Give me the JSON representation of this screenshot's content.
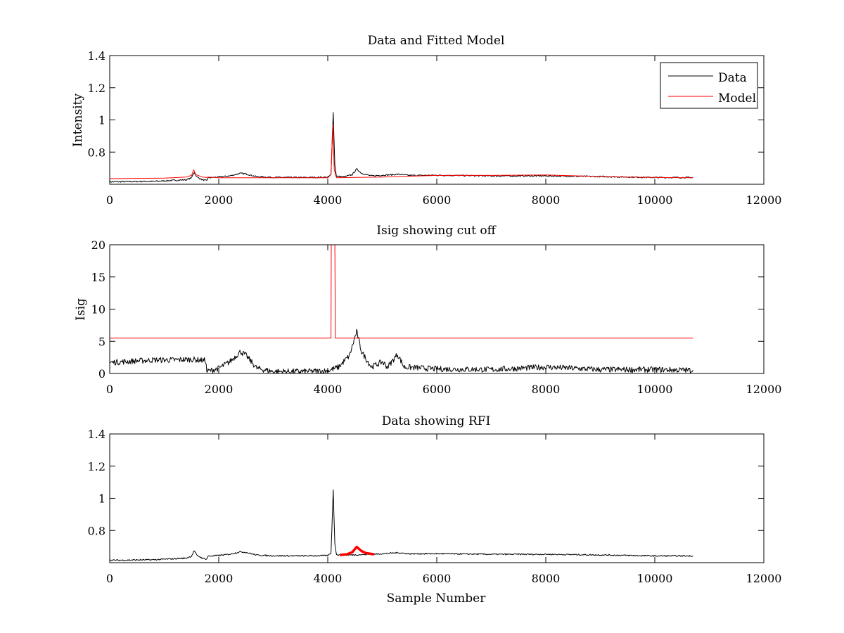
{
  "colors": {
    "data": "#000000",
    "model": "#ff0000",
    "rfi": "#ff0000",
    "axes": "#000000",
    "background": "#ffffff"
  },
  "chart_data": [
    {
      "type": "line",
      "title": "Data and Fitted Model",
      "xlabel": "",
      "ylabel": "Intensity",
      "xlim": [
        0,
        12000
      ],
      "ylim": [
        0.6,
        1.4
      ],
      "x_ticks": [
        0,
        2000,
        4000,
        6000,
        8000,
        10000,
        12000
      ],
      "y_ticks": [
        0.8,
        1,
        1.2,
        1.4
      ],
      "x_tick_labels": [
        "0",
        "2000",
        "4000",
        "6000",
        "8000",
        "10000",
        "12000"
      ],
      "y_tick_labels": [
        "0.8",
        "1",
        "1.2",
        "1.4"
      ],
      "grid": false,
      "legend": {
        "placement": "top-right",
        "entries": [
          "Data",
          "Model"
        ]
      },
      "series": [
        {
          "name": "Data",
          "color": "#000000",
          "points": [
            [
              0,
              0.615
            ],
            [
              800,
              0.618
            ],
            [
              1400,
              0.628
            ],
            [
              1500,
              0.64
            ],
            [
              1550,
              0.675
            ],
            [
              1600,
              0.645
            ],
            [
              1700,
              0.628
            ],
            [
              1780,
              0.622
            ],
            [
              1800,
              0.64
            ],
            [
              2000,
              0.645
            ],
            [
              2200,
              0.652
            ],
            [
              2400,
              0.668
            ],
            [
              2500,
              0.664
            ],
            [
              2700,
              0.647
            ],
            [
              3000,
              0.643
            ],
            [
              3500,
              0.642
            ],
            [
              4000,
              0.644
            ],
            [
              4060,
              0.66
            ],
            [
              4100,
              1.05
            ],
            [
              4130,
              0.72
            ],
            [
              4160,
              0.65
            ],
            [
              4300,
              0.646
            ],
            [
              4450,
              0.66
            ],
            [
              4530,
              0.695
            ],
            [
              4620,
              0.668
            ],
            [
              4800,
              0.652
            ],
            [
              5000,
              0.656
            ],
            [
              5300,
              0.662
            ],
            [
              5500,
              0.655
            ],
            [
              6000,
              0.656
            ],
            [
              7000,
              0.652
            ],
            [
              8000,
              0.652
            ],
            [
              9000,
              0.648
            ],
            [
              10000,
              0.642
            ],
            [
              10700,
              0.642
            ]
          ]
        },
        {
          "name": "Model",
          "color": "#ff0000",
          "points": [
            [
              0,
              0.635
            ],
            [
              1000,
              0.638
            ],
            [
              1400,
              0.645
            ],
            [
              1500,
              0.655
            ],
            [
              1540,
              0.69
            ],
            [
              1580,
              0.66
            ],
            [
              1700,
              0.645
            ],
            [
              1780,
              0.642
            ],
            [
              1800,
              0.645
            ],
            [
              2000,
              0.64
            ],
            [
              3000,
              0.64
            ],
            [
              4000,
              0.64
            ],
            [
              4060,
              0.66
            ],
            [
              4090,
              0.97
            ],
            [
              4120,
              0.69
            ],
            [
              4160,
              0.64
            ],
            [
              5000,
              0.645
            ],
            [
              6000,
              0.655
            ],
            [
              7000,
              0.655
            ],
            [
              8000,
              0.658
            ],
            [
              9000,
              0.648
            ],
            [
              10000,
              0.642
            ],
            [
              10700,
              0.64
            ]
          ]
        }
      ]
    },
    {
      "type": "line",
      "title": "Isig showing cut off",
      "xlabel": "",
      "ylabel": "Isig",
      "xlim": [
        0,
        12000
      ],
      "ylim": [
        0,
        20
      ],
      "x_ticks": [
        0,
        2000,
        4000,
        6000,
        8000,
        10000,
        12000
      ],
      "y_ticks": [
        0,
        5,
        10,
        15,
        20
      ],
      "x_tick_labels": [
        "0",
        "2000",
        "4000",
        "6000",
        "8000",
        "10000",
        "12000"
      ],
      "y_tick_labels": [
        "0",
        "5",
        "10",
        "15",
        "20"
      ],
      "grid": false,
      "series": [
        {
          "name": "",
          "color": "#000000",
          "points": [
            [
              0,
              1.7
            ],
            [
              400,
              1.9
            ],
            [
              800,
              2.1
            ],
            [
              1200,
              2.1
            ],
            [
              1500,
              2.2
            ],
            [
              1760,
              2.0
            ],
            [
              1780,
              0.3
            ],
            [
              2000,
              0.8
            ],
            [
              2200,
              1.8
            ],
            [
              2400,
              3.4
            ],
            [
              2500,
              2.8
            ],
            [
              2700,
              0.8
            ],
            [
              3000,
              0.3
            ],
            [
              3500,
              0.3
            ],
            [
              4000,
              0.4
            ],
            [
              4200,
              1.0
            ],
            [
              4400,
              2.8
            ],
            [
              4530,
              6.5
            ],
            [
              4620,
              3.4
            ],
            [
              4800,
              1.0
            ],
            [
              5000,
              1.8
            ],
            [
              5100,
              1.0
            ],
            [
              5280,
              3.0
            ],
            [
              5400,
              1.0
            ],
            [
              6000,
              0.7
            ],
            [
              7000,
              0.6
            ],
            [
              8000,
              1.0
            ],
            [
              9000,
              0.6
            ],
            [
              10000,
              0.6
            ],
            [
              10700,
              0.5
            ]
          ]
        },
        {
          "name": "",
          "color": "#ff0000",
          "points": [
            [
              0,
              5.5
            ],
            [
              4060,
              5.5
            ],
            [
              4065,
              20
            ],
            [
              4130,
              20
            ],
            [
              4140,
              5.5
            ],
            [
              10700,
              5.5
            ]
          ]
        }
      ]
    },
    {
      "type": "line",
      "title": "Data showing RFI",
      "xlabel": "Sample Number",
      "ylabel": "",
      "xlim": [
        0,
        12000
      ],
      "ylim": [
        0.6,
        1.4
      ],
      "x_ticks": [
        0,
        2000,
        4000,
        6000,
        8000,
        10000,
        12000
      ],
      "y_ticks": [
        0.8,
        1,
        1.2,
        1.4
      ],
      "x_tick_labels": [
        "0",
        "2000",
        "4000",
        "6000",
        "8000",
        "10000",
        "12000"
      ],
      "y_tick_labels": [
        "0.8",
        "1",
        "1.2",
        "1.4"
      ],
      "grid": false,
      "series": [
        {
          "name": "",
          "color": "#000000",
          "points": [
            [
              0,
              0.615
            ],
            [
              800,
              0.618
            ],
            [
              1400,
              0.628
            ],
            [
              1500,
              0.64
            ],
            [
              1550,
              0.675
            ],
            [
              1600,
              0.645
            ],
            [
              1700,
              0.628
            ],
            [
              1780,
              0.622
            ],
            [
              1800,
              0.64
            ],
            [
              2000,
              0.645
            ],
            [
              2200,
              0.652
            ],
            [
              2400,
              0.668
            ],
            [
              2500,
              0.664
            ],
            [
              2700,
              0.647
            ],
            [
              3000,
              0.643
            ],
            [
              3500,
              0.642
            ],
            [
              4000,
              0.644
            ],
            [
              4060,
              0.66
            ],
            [
              4100,
              1.05
            ],
            [
              4130,
              0.72
            ],
            [
              4160,
              0.65
            ],
            [
              4220,
              0.646
            ],
            [
              4850,
              0.652
            ],
            [
              5000,
              0.656
            ],
            [
              5300,
              0.662
            ],
            [
              5500,
              0.655
            ],
            [
              6000,
              0.656
            ],
            [
              7000,
              0.652
            ],
            [
              8000,
              0.652
            ],
            [
              9000,
              0.648
            ],
            [
              10000,
              0.642
            ],
            [
              10700,
              0.642
            ]
          ]
        },
        {
          "name": "",
          "color": "#ff0000",
          "points": [
            [
              4220,
              0.648
            ],
            [
              4350,
              0.652
            ],
            [
              4450,
              0.665
            ],
            [
              4530,
              0.698
            ],
            [
              4620,
              0.672
            ],
            [
              4700,
              0.66
            ],
            [
              4850,
              0.652
            ]
          ]
        }
      ]
    }
  ]
}
